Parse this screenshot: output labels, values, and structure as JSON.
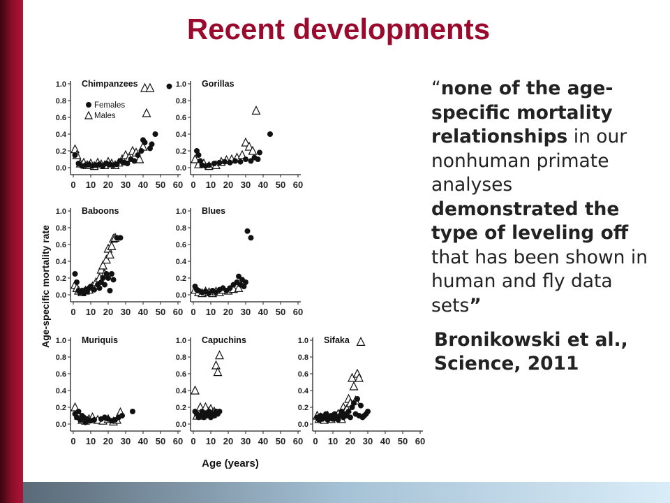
{
  "slide": {
    "title": "Recent developments",
    "quote": {
      "open_mark": "“",
      "part1_bold": "none of the age-specific mortality relationships",
      "part2": " in our nonhuman primate analyses ",
      "part3_bold": "demonstrated the type of leveling off",
      "part4": " that has been shown in human and fly data sets",
      "close_mark": "”"
    },
    "citation_line1": "Bronikowski et al.,",
    "citation_line2": "Science, 2011"
  },
  "colors": {
    "title": "#990a2c",
    "left_bar": "#8e0f2a",
    "bottom_bar_start": "#5a6a78",
    "bottom_bar_end": "#d9ecf8",
    "text": "#222222",
    "marker": "#111111"
  },
  "chart_data": {
    "type": "scatter",
    "ylabel": "Age-specific mortality rate",
    "xlabel": "Age (years)",
    "xlim": [
      0,
      60
    ],
    "ylim": [
      0,
      1.0
    ],
    "xticks": [
      "0",
      "10",
      "20",
      "30",
      "40",
      "50",
      "60"
    ],
    "yticks": [
      "0.0",
      "0.2",
      "0.4",
      "0.6",
      "0.8",
      "1.0"
    ],
    "legend": {
      "placement": "top-left",
      "entries": [
        "Females",
        "Males"
      ]
    },
    "panels": [
      {
        "name": "Chimpanzees",
        "show_legend": true,
        "females": [
          [
            1,
            0.15
          ],
          [
            3,
            0.05
          ],
          [
            5,
            0.02
          ],
          [
            7,
            0.03
          ],
          [
            9,
            0.04
          ],
          [
            11,
            0.02
          ],
          [
            13,
            0.03
          ],
          [
            15,
            0.04
          ],
          [
            17,
            0.02
          ],
          [
            19,
            0.05
          ],
          [
            21,
            0.04
          ],
          [
            23,
            0.03
          ],
          [
            25,
            0.04
          ],
          [
            27,
            0.08
          ],
          [
            29,
            0.06
          ],
          [
            31,
            0.05
          ],
          [
            33,
            0.1
          ],
          [
            35,
            0.08
          ],
          [
            37,
            0.15
          ],
          [
            39,
            0.2
          ],
          [
            40,
            0.33
          ],
          [
            41,
            0.3
          ],
          [
            44,
            0.23
          ],
          [
            45,
            0.28
          ],
          [
            47,
            0.4
          ],
          [
            55,
            0.97
          ]
        ],
        "males": [
          [
            1,
            0.22
          ],
          [
            2,
            0.15
          ],
          [
            4,
            0.05
          ],
          [
            6,
            0.06
          ],
          [
            8,
            0.03
          ],
          [
            10,
            0.05
          ],
          [
            12,
            0.02
          ],
          [
            14,
            0.06
          ],
          [
            16,
            0.04
          ],
          [
            18,
            0.03
          ],
          [
            20,
            0.07
          ],
          [
            22,
            0.05
          ],
          [
            24,
            0.03
          ],
          [
            26,
            0.06
          ],
          [
            28,
            0.1
          ],
          [
            30,
            0.15
          ],
          [
            32,
            0.12
          ],
          [
            34,
            0.2
          ],
          [
            36,
            0.18
          ],
          [
            38,
            0.1
          ],
          [
            40,
            0.25
          ],
          [
            41,
            0.95
          ],
          [
            44,
            0.95
          ],
          [
            42,
            0.65
          ]
        ]
      },
      {
        "name": "Gorillas",
        "show_legend": false,
        "females": [
          [
            2,
            0.2
          ],
          [
            3,
            0.15
          ],
          [
            4,
            0.08
          ],
          [
            5,
            0.03
          ],
          [
            7,
            0.02
          ],
          [
            9,
            0.03
          ],
          [
            12,
            0.05
          ],
          [
            15,
            0.06
          ],
          [
            18,
            0.07
          ],
          [
            21,
            0.06
          ],
          [
            24,
            0.08
          ],
          [
            27,
            0.07
          ],
          [
            30,
            0.1
          ],
          [
            33,
            0.08
          ],
          [
            35,
            0.12
          ],
          [
            37,
            0.1
          ],
          [
            38,
            0.18
          ],
          [
            44,
            0.4
          ]
        ],
        "males": [
          [
            1,
            0.1
          ],
          [
            3,
            0.04
          ],
          [
            6,
            0.05
          ],
          [
            9,
            0.02
          ],
          [
            13,
            0.03
          ],
          [
            16,
            0.07
          ],
          [
            19,
            0.09
          ],
          [
            22,
            0.1
          ],
          [
            25,
            0.12
          ],
          [
            28,
            0.15
          ],
          [
            30,
            0.3
          ],
          [
            32,
            0.25
          ],
          [
            34,
            0.2
          ],
          [
            36,
            0.68
          ]
        ]
      },
      {
        "name": "Baboons",
        "show_legend": false,
        "females": [
          [
            1,
            0.25
          ],
          [
            2,
            0.15
          ],
          [
            3,
            0.05
          ],
          [
            4,
            0.03
          ],
          [
            5,
            0.05
          ],
          [
            6,
            0.02
          ],
          [
            7,
            0.06
          ],
          [
            8,
            0.04
          ],
          [
            9,
            0.08
          ],
          [
            10,
            0.1
          ],
          [
            12,
            0.06
          ],
          [
            14,
            0.12
          ],
          [
            15,
            0.08
          ],
          [
            16,
            0.15
          ],
          [
            17,
            0.2
          ],
          [
            18,
            0.12
          ],
          [
            19,
            0.25
          ],
          [
            20,
            0.2
          ],
          [
            21,
            0.05
          ],
          [
            22,
            0.25
          ],
          [
            23,
            0.18
          ],
          [
            25,
            0.68
          ],
          [
            27,
            0.68
          ]
        ],
        "males": [
          [
            1,
            0.12
          ],
          [
            2,
            0.08
          ],
          [
            3,
            0.05
          ],
          [
            5,
            0.03
          ],
          [
            7,
            0.05
          ],
          [
            9,
            0.06
          ],
          [
            11,
            0.1
          ],
          [
            13,
            0.15
          ],
          [
            15,
            0.2
          ],
          [
            16,
            0.3
          ],
          [
            17,
            0.35
          ],
          [
            18,
            0.25
          ],
          [
            19,
            0.42
          ],
          [
            20,
            0.55
          ],
          [
            21,
            0.48
          ],
          [
            22,
            0.58
          ],
          [
            23,
            0.67
          ],
          [
            24,
            0.68
          ]
        ]
      },
      {
        "name": "Blues",
        "show_legend": false,
        "females": [
          [
            1,
            0.1
          ],
          [
            2,
            0.06
          ],
          [
            3,
            0.05
          ],
          [
            5,
            0.03
          ],
          [
            7,
            0.04
          ],
          [
            9,
            0.02
          ],
          [
            11,
            0.05
          ],
          [
            13,
            0.03
          ],
          [
            15,
            0.06
          ],
          [
            17,
            0.08
          ],
          [
            19,
            0.05
          ],
          [
            21,
            0.08
          ],
          [
            23,
            0.12
          ],
          [
            25,
            0.15
          ],
          [
            26,
            0.22
          ],
          [
            27,
            0.12
          ],
          [
            28,
            0.18
          ],
          [
            29,
            0.1
          ],
          [
            30,
            0.15
          ],
          [
            31,
            0.76
          ],
          [
            33,
            0.68
          ]
        ],
        "males": [
          [
            1,
            0.06
          ],
          [
            3,
            0.03
          ],
          [
            5,
            0.02
          ],
          [
            7,
            0.04
          ],
          [
            9,
            0.03
          ],
          [
            11,
            0.02
          ],
          [
            13,
            0.04
          ],
          [
            15,
            0.03
          ],
          [
            17,
            0.06
          ],
          [
            20,
            0.05
          ],
          [
            23,
            0.07
          ],
          [
            26,
            0.08
          ]
        ]
      },
      {
        "name": "Muriquis",
        "show_legend": false,
        "females": [
          [
            1,
            0.12
          ],
          [
            2,
            0.08
          ],
          [
            3,
            0.15
          ],
          [
            4,
            0.05
          ],
          [
            5,
            0.1
          ],
          [
            6,
            0.08
          ],
          [
            7,
            0.02
          ],
          [
            8,
            0.06
          ],
          [
            10,
            0.04
          ],
          [
            12,
            0.05
          ],
          [
            16,
            0.06
          ],
          [
            18,
            0.08
          ],
          [
            20,
            0.06
          ],
          [
            22,
            0.04
          ],
          [
            24,
            0.05
          ],
          [
            26,
            0.08
          ],
          [
            28,
            0.1
          ],
          [
            34,
            0.15
          ]
        ],
        "males": [
          [
            1,
            0.2
          ],
          [
            3,
            0.1
          ],
          [
            5,
            0.05
          ],
          [
            7,
            0.04
          ],
          [
            9,
            0.06
          ],
          [
            11,
            0.08
          ],
          [
            14,
            0.05
          ],
          [
            17,
            0.04
          ],
          [
            20,
            0.06
          ],
          [
            23,
            0.03
          ],
          [
            25,
            0.05
          ],
          [
            27,
            0.14
          ]
        ]
      },
      {
        "name": "Capuchins",
        "show_legend": false,
        "females": [
          [
            1,
            0.15
          ],
          [
            2,
            0.12
          ],
          [
            3,
            0.08
          ],
          [
            4,
            0.1
          ],
          [
            5,
            0.15
          ],
          [
            6,
            0.08
          ],
          [
            7,
            0.12
          ],
          [
            8,
            0.1
          ],
          [
            9,
            0.15
          ],
          [
            10,
            0.08
          ],
          [
            11,
            0.12
          ],
          [
            12,
            0.1
          ],
          [
            13,
            0.15
          ],
          [
            14,
            0.12
          ],
          [
            15,
            0.15
          ]
        ],
        "males": [
          [
            1,
            0.4
          ],
          [
            2,
            0.1
          ],
          [
            3,
            0.15
          ],
          [
            4,
            0.2
          ],
          [
            5,
            0.1
          ],
          [
            6,
            0.15
          ],
          [
            7,
            0.2
          ],
          [
            8,
            0.12
          ],
          [
            9,
            0.15
          ],
          [
            10,
            0.18
          ],
          [
            11,
            0.12
          ],
          [
            12,
            0.15
          ],
          [
            13,
            0.7
          ],
          [
            14,
            0.62
          ],
          [
            15,
            0.82
          ]
        ]
      },
      {
        "name": "Sifaka",
        "show_legend": false,
        "females": [
          [
            1,
            0.08
          ],
          [
            2,
            0.05
          ],
          [
            3,
            0.1
          ],
          [
            4,
            0.06
          ],
          [
            5,
            0.08
          ],
          [
            6,
            0.12
          ],
          [
            7,
            0.05
          ],
          [
            8,
            0.08
          ],
          [
            9,
            0.1
          ],
          [
            10,
            0.06
          ],
          [
            11,
            0.12
          ],
          [
            12,
            0.08
          ],
          [
            13,
            0.05
          ],
          [
            14,
            0.1
          ],
          [
            15,
            0.15
          ],
          [
            16,
            0.08
          ],
          [
            17,
            0.12
          ],
          [
            18,
            0.1
          ],
          [
            19,
            0.15
          ],
          [
            20,
            0.08
          ],
          [
            21,
            0.2
          ],
          [
            22,
            0.25
          ],
          [
            23,
            0.12
          ],
          [
            24,
            0.3
          ],
          [
            25,
            0.1
          ],
          [
            26,
            0.22
          ],
          [
            27,
            0.08
          ],
          [
            28,
            0.1
          ],
          [
            29,
            0.12
          ],
          [
            30,
            0.15
          ]
        ],
        "males": [
          [
            1,
            0.1
          ],
          [
            2,
            0.06
          ],
          [
            3,
            0.08
          ],
          [
            5,
            0.05
          ],
          [
            7,
            0.1
          ],
          [
            9,
            0.06
          ],
          [
            11,
            0.08
          ],
          [
            13,
            0.12
          ],
          [
            15,
            0.06
          ],
          [
            16,
            0.2
          ],
          [
            17,
            0.15
          ],
          [
            18,
            0.18
          ],
          [
            19,
            0.3
          ],
          [
            20,
            0.25
          ],
          [
            21,
            0.55
          ],
          [
            22,
            0.45
          ],
          [
            23,
            0.28
          ],
          [
            24,
            0.6
          ],
          [
            25,
            0.55
          ],
          [
            26,
            0.98
          ]
        ]
      }
    ]
  }
}
